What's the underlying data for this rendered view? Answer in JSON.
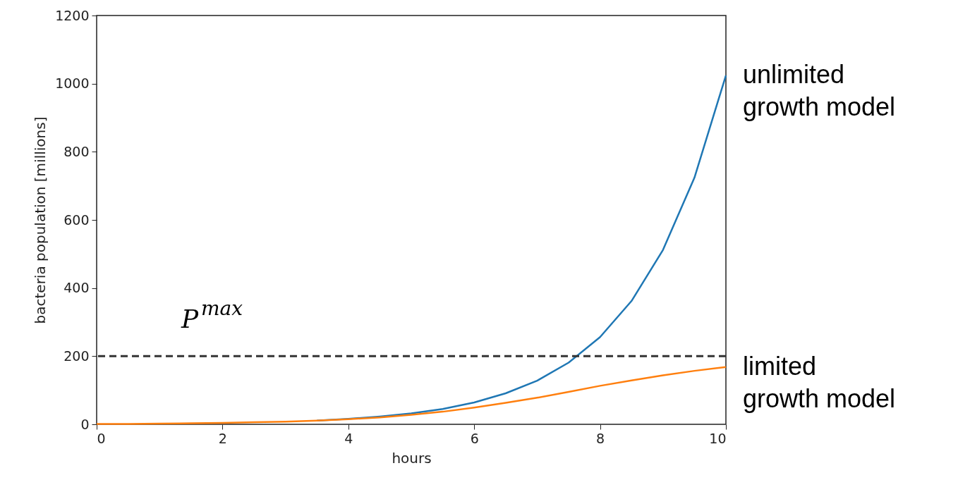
{
  "chart_data": {
    "type": "line",
    "xlabel": "hours",
    "ylabel": "bacteria population [millions]",
    "x": [
      0,
      0.5,
      1,
      1.5,
      2,
      2.5,
      3,
      3.5,
      4,
      4.5,
      5,
      5.5,
      6,
      6.5,
      7,
      7.5,
      8,
      8.5,
      9,
      9.5,
      10
    ],
    "series": [
      {
        "name": "unlimited growth model",
        "color": "#1f77b4",
        "values": [
          null,
          null,
          null,
          null,
          null,
          null,
          null,
          11,
          16,
          23,
          32,
          45,
          64,
          91,
          128,
          181,
          256,
          362,
          512,
          724,
          1024
        ]
      },
      {
        "name": "limited growth model",
        "color": "#ff7f0e",
        "values": [
          1,
          1,
          2,
          3,
          4,
          6,
          8,
          11,
          15,
          20,
          28,
          37,
          49,
          63,
          78,
          95,
          113,
          129,
          144,
          157,
          168
        ]
      }
    ],
    "xlim": [
      0,
      10
    ],
    "xticks": [
      0,
      2,
      4,
      6,
      8,
      10
    ],
    "ylim": [
      0,
      1200
    ],
    "yticks": [
      0,
      200,
      400,
      600,
      800,
      1000,
      1200
    ],
    "grid": false,
    "marker": "none",
    "line_style": "solid",
    "ref_lines": [
      {
        "axis": "y",
        "value": 200,
        "label": "P$^{max}$",
        "color": "#333333",
        "line_style": "dashed"
      }
    ]
  }
}
